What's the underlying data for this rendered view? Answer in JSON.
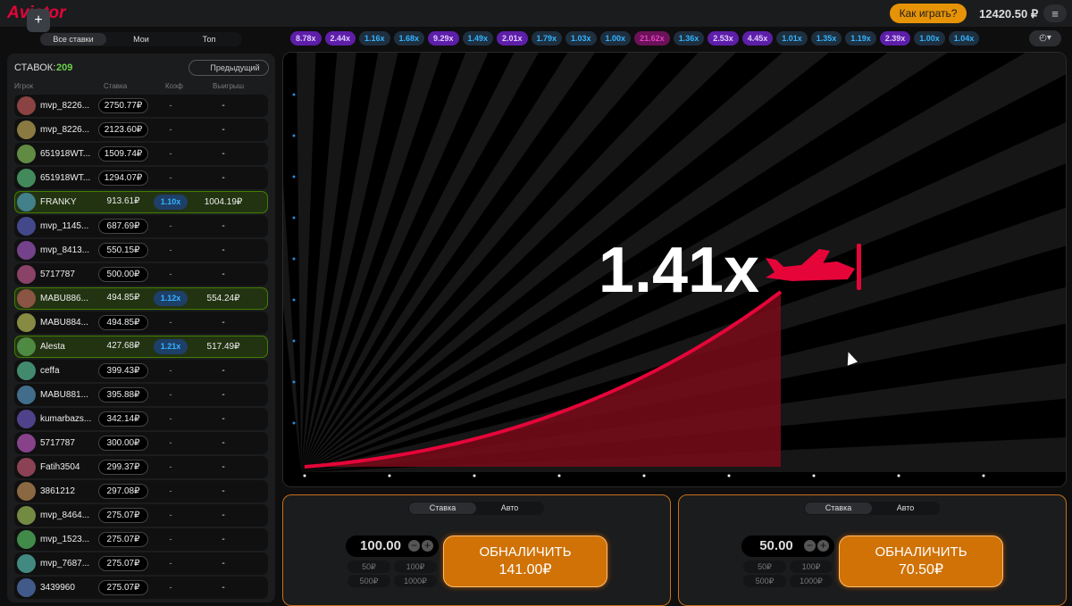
{
  "header": {
    "logo": "Aviator",
    "help": "Как играть?",
    "balance": "12420.50 ₽"
  },
  "bets_tabs": [
    "Все ставки",
    "Мои",
    "Топ"
  ],
  "history": [
    "8.78x",
    "2.44x",
    "1.16x",
    "1.68x",
    "9.29x",
    "1.49x",
    "2.01x",
    "1.79x",
    "1.03x",
    "1.00x",
    "21.62x",
    "1.36x",
    "2.53x",
    "4.45x",
    "1.01x",
    "1.35x",
    "1.19x",
    "2.39x",
    "1.00x",
    "1.04x"
  ],
  "bets": {
    "label": "СТАВОК:",
    "count": "209",
    "previous": "Предыдущий",
    "columns": [
      "Игрок",
      "Ставка",
      "Коэф",
      "Выигрыш"
    ],
    "rows": [
      {
        "player": "mvp_8226...",
        "bet": "2750.77₽",
        "coef": "-",
        "win": "-",
        "won": false
      },
      {
        "player": "mvp_8226...",
        "bet": "2123.60₽",
        "coef": "-",
        "win": "-",
        "won": false
      },
      {
        "player": "651918WT...",
        "bet": "1509.74₽",
        "coef": "-",
        "win": "-",
        "won": false
      },
      {
        "player": "651918WT...",
        "bet": "1294.07₽",
        "coef": "-",
        "win": "-",
        "won": false
      },
      {
        "player": "FRANKY",
        "bet": "913.61₽",
        "coef": "1.10x",
        "win": "1004.19₽",
        "won": true
      },
      {
        "player": "mvp_1145...",
        "bet": "687.69₽",
        "coef": "-",
        "win": "-",
        "won": false
      },
      {
        "player": "mvp_8413...",
        "bet": "550.15₽",
        "coef": "-",
        "win": "-",
        "won": false
      },
      {
        "player": "5717787",
        "bet": "500.00₽",
        "coef": "-",
        "win": "-",
        "won": false
      },
      {
        "player": "MABU886...",
        "bet": "494.85₽",
        "coef": "1.12x",
        "win": "554.24₽",
        "won": true
      },
      {
        "player": "MABU884...",
        "bet": "494.85₽",
        "coef": "-",
        "win": "-",
        "won": false
      },
      {
        "player": "Alesta",
        "bet": "427.68₽",
        "coef": "1.21x",
        "win": "517.49₽",
        "won": true
      },
      {
        "player": "ceffa",
        "bet": "399.43₽",
        "coef": "-",
        "win": "-",
        "won": false
      },
      {
        "player": "MABU881...",
        "bet": "395.88₽",
        "coef": "-",
        "win": "-",
        "won": false
      },
      {
        "player": "kumarbazs...",
        "bet": "342.14₽",
        "coef": "-",
        "win": "-",
        "won": false
      },
      {
        "player": "5717787",
        "bet": "300.00₽",
        "coef": "-",
        "win": "-",
        "won": false
      },
      {
        "player": "Fatih3504",
        "bet": "299.37₽",
        "coef": "-",
        "win": "-",
        "won": false
      },
      {
        "player": "3861212",
        "bet": "297.08₽",
        "coef": "-",
        "win": "-",
        "won": false
      },
      {
        "player": "mvp_8464...",
        "bet": "275.07₽",
        "coef": "-",
        "win": "-",
        "won": false
      },
      {
        "player": "mvp_1523...",
        "bet": "275.07₽",
        "coef": "-",
        "win": "-",
        "won": false
      },
      {
        "player": "mvp_7687...",
        "bet": "275.07₽",
        "coef": "-",
        "win": "-",
        "won": false
      },
      {
        "player": "3439960",
        "bet": "275.07₽",
        "coef": "-",
        "win": "-",
        "won": false
      }
    ]
  },
  "game": {
    "multiplier": "1.41x"
  },
  "panels": [
    {
      "tabs": [
        "Ставка",
        "Авто"
      ],
      "amount": "100.00",
      "quick": [
        "50₽",
        "100₽",
        "500₽",
        "1000₽"
      ],
      "button": "ОБНАЛИЧИТЬ",
      "cashout": "141.00₽"
    },
    {
      "tabs": [
        "Ставка",
        "Авто"
      ],
      "amount": "50.00",
      "quick": [
        "50₽",
        "100₽",
        "500₽",
        "1000₽"
      ],
      "button": "ОБНАЛИЧИТЬ",
      "cashout": "70.50₽"
    }
  ]
}
